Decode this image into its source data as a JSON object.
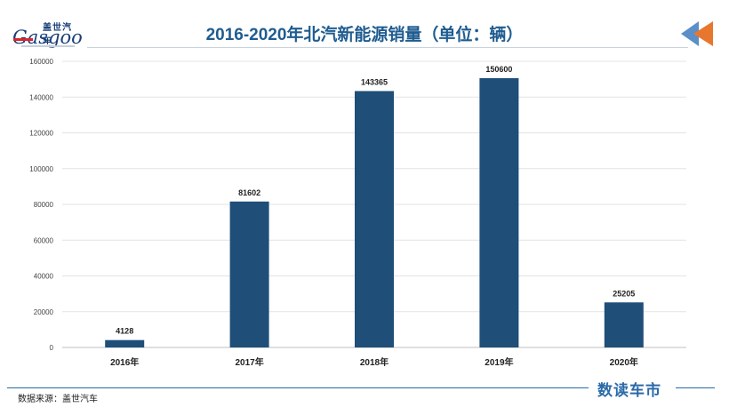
{
  "header": {
    "title": "2016-2020年北汽新能源销量（单位：辆）",
    "logo_cn": "盖世汽车",
    "logo_en": "Gasgoo"
  },
  "footer": {
    "source": "数据来源：盖世汽车",
    "brand": "数读车市"
  },
  "colors": {
    "bar": "#1f4e79",
    "title": "#1f5c90",
    "arrow_orange": "#e8772e",
    "arrow_blue": "#5a8fc8"
  },
  "icons": {
    "corner": "double-arrow-left-icon"
  },
  "chart_data": {
    "type": "bar",
    "title": "2016-2020年北汽新能源销量（单位：辆）",
    "categories": [
      "2016年",
      "2017年",
      "2018年",
      "2019年",
      "2020年"
    ],
    "values": [
      4128,
      81602,
      143365,
      150600,
      25205
    ],
    "value_labels": [
      "4128",
      "81602",
      "143365",
      "150600",
      "25205"
    ],
    "ylim": [
      0,
      160000
    ],
    "yticks": [
      0,
      20000,
      40000,
      60000,
      80000,
      100000,
      120000,
      140000,
      160000
    ],
    "ytick_labels": [
      "0",
      "20000",
      "40000",
      "60000",
      "80000",
      "100000",
      "120000",
      "140000",
      "160000"
    ],
    "grid": true,
    "legend": "none",
    "xlabel": "",
    "ylabel": ""
  }
}
